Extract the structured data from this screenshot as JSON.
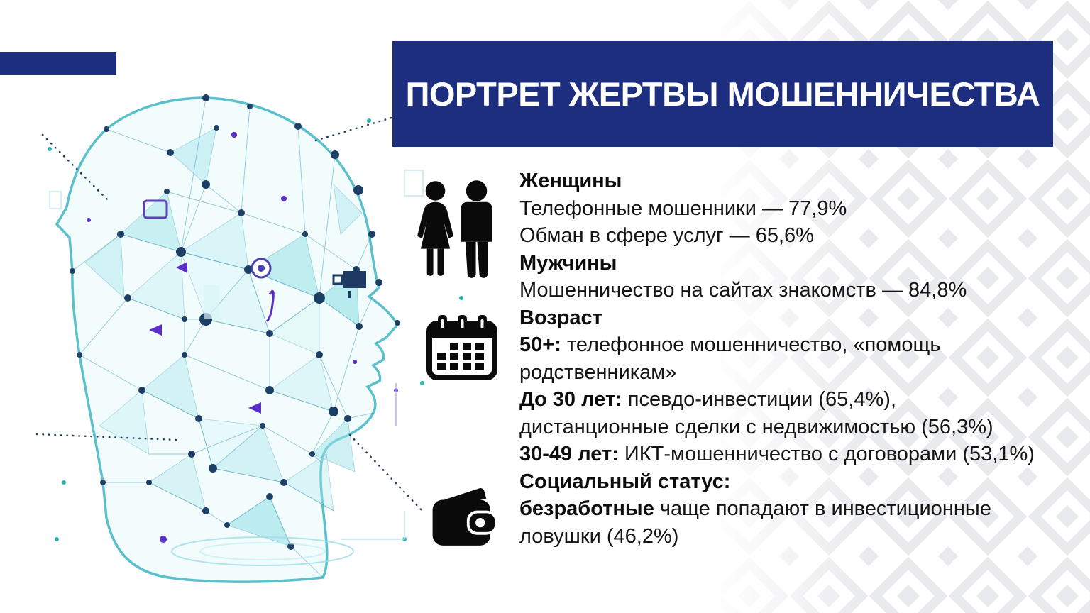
{
  "slide": {
    "title": "ПОРТРЕТ ЖЕРТВЫ МОШЕННИЧЕСТВА",
    "accent_color": "#1e2e7e",
    "ornament_color": "#e9eaee",
    "text_color": "#151515",
    "head_art": {
      "description": "low-poly wireframe human head in profile facing right",
      "line_color": "#2f93ab",
      "fill_color": "#aee7ec",
      "node_color": "#1d3f66",
      "accent_purple": "#5b2ec9"
    }
  },
  "icons": [
    {
      "name": "man-woman-silhouette-icon"
    },
    {
      "name": "calendar-icon"
    },
    {
      "name": "wallet-icon"
    }
  ],
  "content": {
    "lines": [
      {
        "bold": "Женщины",
        "rest": ""
      },
      {
        "bold": "",
        "rest": "Телефонные мошенники — 77,9%"
      },
      {
        "bold": "",
        "rest": "Обман в сфере услуг — 65,6%"
      },
      {
        "bold": "Мужчины",
        "rest": ""
      },
      {
        "bold": "",
        "rest": "Мошенничество на сайтах знакомств — 84,8%"
      },
      {
        "bold": "Возраст",
        "rest": ""
      },
      {
        "bold": "50+:",
        "rest": " телефонное мошенничество, «помощь"
      },
      {
        "bold": "",
        "rest": "родственникам»"
      },
      {
        "bold": "До 30 лет:",
        "rest": " псевдо-инвестиции (65,4%),"
      },
      {
        "bold": "",
        "rest": "дистанционные сделки с недвижимостью (56,3%)"
      },
      {
        "bold": "30-49 лет:",
        "rest": " ИКТ-мошенничество с договорами (53,1%)"
      },
      {
        "bold": "Социальный статус:",
        "rest": ""
      },
      {
        "bold": "безработные",
        "rest": " чаще попадают в инвестиционные"
      },
      {
        "bold": "",
        "rest": "ловушки (46,2%)"
      }
    ]
  }
}
